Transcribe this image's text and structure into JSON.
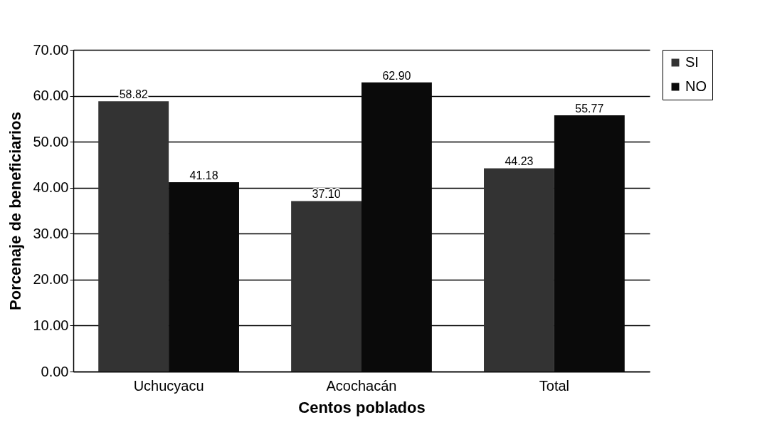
{
  "chart_data": {
    "type": "bar",
    "xlabel": "Centos poblados",
    "ylabel": "Porcenaje de beneficiarios",
    "categories": [
      "Uchucyacu",
      "Acochacán",
      "Total"
    ],
    "series": [
      {
        "name": "SI",
        "color": "#333333",
        "values": [
          58.82,
          37.1,
          44.23
        ],
        "value_labels": [
          "58.82",
          "37.10",
          "44.23"
        ]
      },
      {
        "name": "NO",
        "color": "#0a0a0a",
        "values": [
          41.18,
          62.9,
          55.77
        ],
        "value_labels": [
          "41.18",
          "62.90",
          "55.77"
        ]
      }
    ],
    "ylim": [
      0,
      70
    ],
    "yticks": [
      {
        "value": 0,
        "label": "0.00"
      },
      {
        "value": 10,
        "label": "10.00"
      },
      {
        "value": 20,
        "label": "20.00"
      },
      {
        "value": 30,
        "label": "30.00"
      },
      {
        "value": 40,
        "label": "40.00"
      },
      {
        "value": 50,
        "label": "50.00"
      },
      {
        "value": 60,
        "label": "60.00"
      },
      {
        "value": 70,
        "label": "70.00"
      }
    ],
    "grid": "y",
    "legend": "right"
  }
}
